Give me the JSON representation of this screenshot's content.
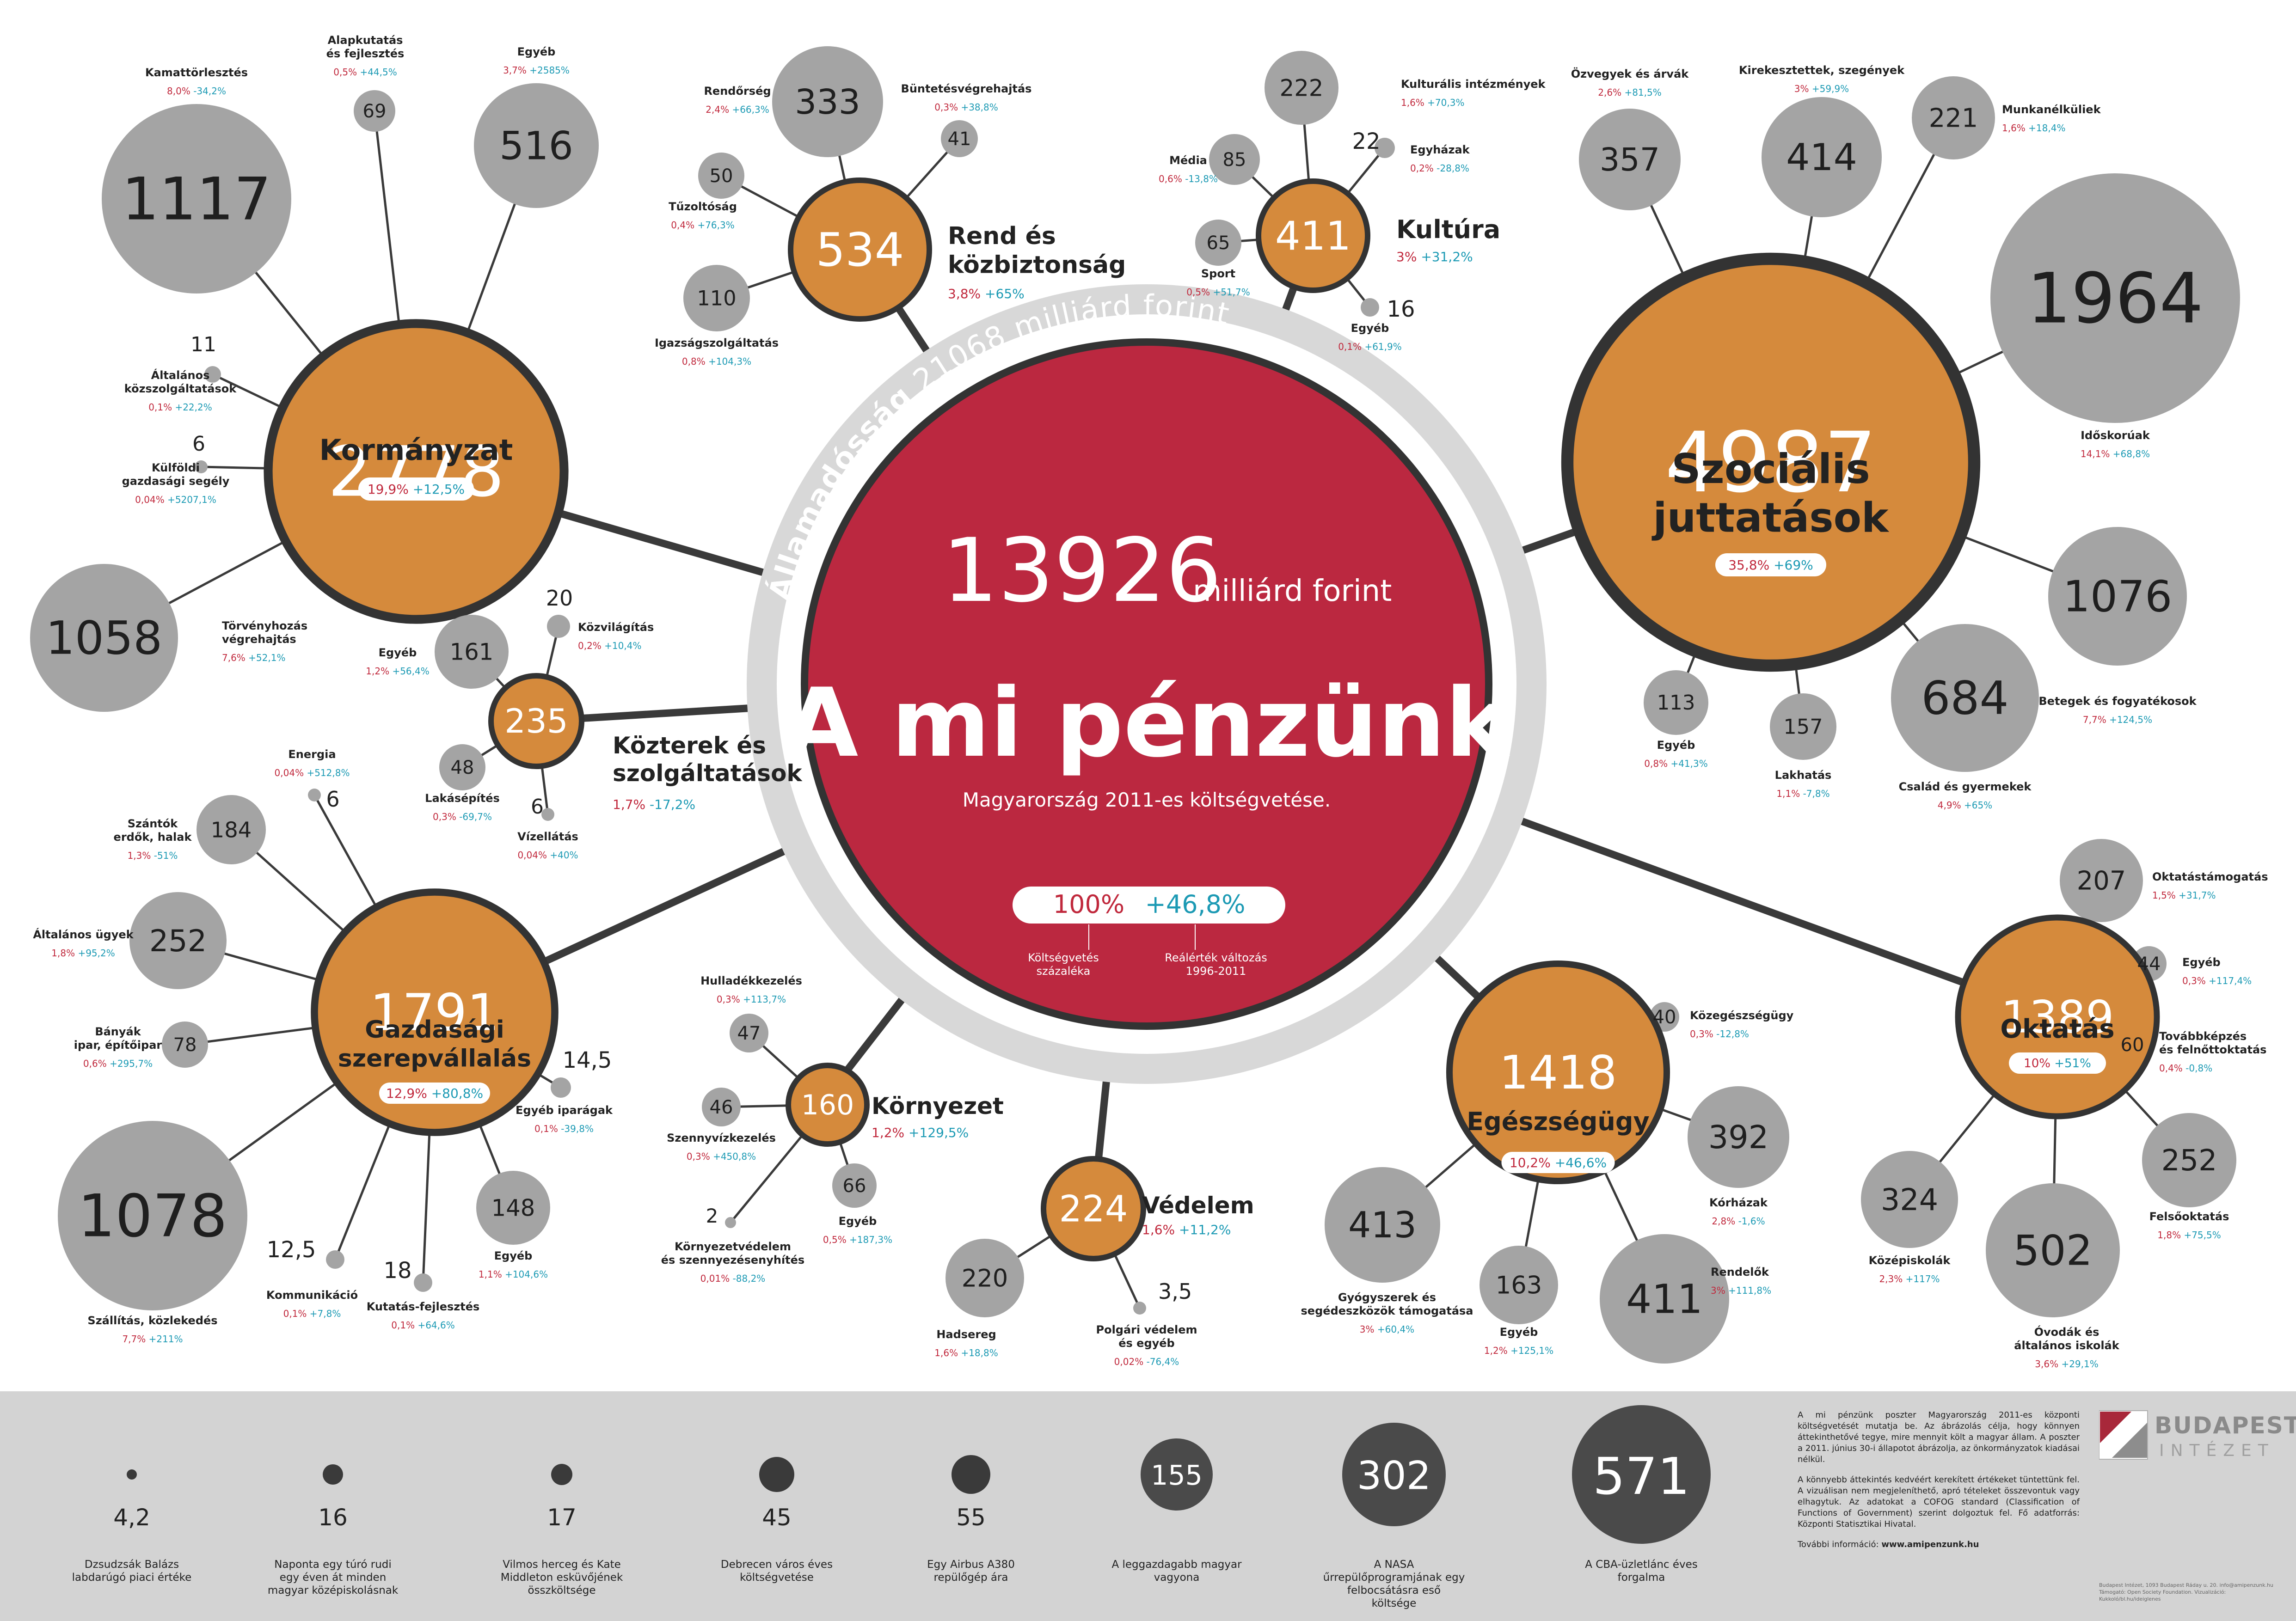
{
  "colors": {
    "orange": "#d58a3c",
    "grey": "#a4a4a4",
    "dark_grey": "#4a4a4a",
    "red": "#bb2840",
    "ring": "#d8d8d8",
    "text_red": "#c0283c",
    "text_blue": "#1c9ab4",
    "footer": "#d3d3d3"
  },
  "center": {
    "amount": "13926",
    "unit": "milliárd forint",
    "title": "A mi pénzünk",
    "subtitle": "Magyarország 2011-es költségvetése.",
    "pct": "100%",
    "change": "+46,8%",
    "pct_label": "Költségvetés százaléka",
    "change_label": "Reálérték változás 1996-2011"
  },
  "debt_ring": {
    "label": "Államadósság",
    "value": "21068 milliárd forint"
  },
  "categories": {
    "kormanyzat": {
      "value": "2778",
      "name": "Kormányzat",
      "pct": "19,9%",
      "chg": "+12,5%",
      "items": [
        {
          "value": "1117",
          "label": "Kamattörlesztés",
          "pct": "8,0%",
          "chg": "-34,2%"
        },
        {
          "value": "69",
          "label": "Alapkutatás és fejlesztés",
          "pct": "0,5%",
          "chg": "+44,5%"
        },
        {
          "value": "516",
          "label": "Egyéb",
          "pct": "3,7%",
          "chg": "+2585%"
        },
        {
          "value": "11",
          "label": "Általános közszolgáltatások",
          "pct": "0,1%",
          "chg": "+22,2%"
        },
        {
          "value": "6",
          "label": "Külföldi gazdasági segély",
          "pct": "0,04%",
          "chg": "+5207,1%"
        },
        {
          "value": "1058",
          "label": "Törvényhozás végrehajtás",
          "pct": "7,6%",
          "chg": "+52,1%"
        }
      ]
    },
    "rend": {
      "value": "534",
      "name": "Rend és közbiztonság",
      "pct": "3,8%",
      "chg": "+65%",
      "items": [
        {
          "value": "333",
          "label": "Rendőrség",
          "pct": "2,4%",
          "chg": "+66,3%"
        },
        {
          "value": "41",
          "label": "Büntetésvégrehajtás",
          "pct": "0,3%",
          "chg": "+38,8%"
        },
        {
          "value": "50",
          "label": "Tűzoltóság",
          "pct": "0,4%",
          "chg": "+76,3%"
        },
        {
          "value": "110",
          "label": "Igazságszolgáltatás",
          "pct": "0,8%",
          "chg": "+104,3%"
        }
      ]
    },
    "kultura": {
      "value": "411",
      "name": "Kultúra",
      "pct": "3%",
      "chg": "+31,2%",
      "items": [
        {
          "value": "222",
          "label": "Kulturális intézmények",
          "pct": "1,6%",
          "chg": "+70,3%"
        },
        {
          "value": "85",
          "label": "Média",
          "pct": "0,6%",
          "chg": "-13,8%"
        },
        {
          "value": "22",
          "label": "Egyházak",
          "pct": "0,2%",
          "chg": "-28,8%"
        },
        {
          "value": "65",
          "label": "Sport",
          "pct": "0,5%",
          "chg": "+51,7%"
        },
        {
          "value": "16",
          "label": "Egyéb",
          "pct": "0,1%",
          "chg": "+61,9%"
        }
      ]
    },
    "szocialis": {
      "value": "4987",
      "name": "Szociális juttatások",
      "pct": "35,8%",
      "chg": "+69%",
      "items": [
        {
          "value": "357",
          "label": "Özvegyek és árvák",
          "pct": "2,6%",
          "chg": "+81,5%"
        },
        {
          "value": "414",
          "label": "Kirekesztettek, szegények",
          "pct": "3%",
          "chg": "+59,9%"
        },
        {
          "value": "221",
          "label": "Munkanélküliek",
          "pct": "1,6%",
          "chg": "+18,4%"
        },
        {
          "value": "1964",
          "label": "Időskorúak",
          "pct": "14,1%",
          "chg": "+68,8%"
        },
        {
          "value": "1076",
          "label": "Betegek és fogyatékosok",
          "pct": "7,7%",
          "chg": "+124,5%"
        },
        {
          "value": "684",
          "label": "Család és gyermekek",
          "pct": "4,9%",
          "chg": "+65%"
        },
        {
          "value": "157",
          "label": "Lakhatás",
          "pct": "1,1%",
          "chg": "-7,8%"
        },
        {
          "value": "113",
          "label": "Egyéb",
          "pct": "0,8%",
          "chg": "+41,3%"
        }
      ]
    },
    "kozterek": {
      "value": "235",
      "name": "Közterek és szolgáltatások",
      "pct": "1,7%",
      "chg": "-17,2%",
      "items": [
        {
          "value": "161",
          "label": "Egyéb",
          "pct": "1,2%",
          "chg": "+56,4%"
        },
        {
          "value": "20",
          "label": "Közvilágítás",
          "pct": "0,2%",
          "chg": "+10,4%"
        },
        {
          "value": "48",
          "label": "Lakásépítés",
          "pct": "0,3%",
          "chg": "-69,7%"
        },
        {
          "value": "6",
          "label": "Vízellátás",
          "pct": "0,04%",
          "chg": "+40%"
        }
      ]
    },
    "gazdasagi": {
      "value": "1791",
      "name": "Gazdasági szerepvállalás",
      "pct": "12,9%",
      "chg": "+80,8%",
      "items": [
        {
          "value": "184",
          "label": "Szántók erdők, halak",
          "pct": "1,3%",
          "chg": "-51%"
        },
        {
          "value": "6",
          "label": "Energia",
          "pct": "0,04%",
          "chg": "+512,8%"
        },
        {
          "value": "252",
          "label": "Általános ügyek",
          "pct": "1,8%",
          "chg": "+95,2%"
        },
        {
          "value": "78",
          "label": "Bányák ipar, építőipar",
          "pct": "0,6%",
          "chg": "+295,7%"
        },
        {
          "value": "14,5",
          "label": "Egyéb iparágak",
          "pct": "0,1%",
          "chg": "-39,8%"
        },
        {
          "value": "148",
          "label": "Egyéb",
          "pct": "1,1%",
          "chg": "+104,6%"
        },
        {
          "value": "18",
          "label": "Kutatás-fejlesztés",
          "pct": "0,1%",
          "chg": "+64,6%"
        },
        {
          "value": "12,5",
          "label": "Kommunikáció",
          "pct": "0,1%",
          "chg": "+7,8%"
        },
        {
          "value": "1078",
          "label": "Szállítás, közlekedés",
          "pct": "7,7%",
          "chg": "+211%"
        }
      ]
    },
    "kornyezet": {
      "value": "160",
      "name": "Környezet",
      "pct": "1,2%",
      "chg": "+129,5%",
      "items": [
        {
          "value": "47",
          "label": "Hulladékkezelés",
          "pct": "0,3%",
          "chg": "+113,7%"
        },
        {
          "value": "46",
          "label": "Szennyvízkezelés",
          "pct": "0,3%",
          "chg": "+450,8%"
        },
        {
          "value": "66",
          "label": "Egyéb",
          "pct": "0,5%",
          "chg": "+187,3%"
        },
        {
          "value": "2",
          "label": "Környezetvédelem és szennyezésenyhítés",
          "pct": "0,01%",
          "chg": "-88,2%"
        }
      ]
    },
    "vedelem": {
      "value": "224",
      "name": "Védelem",
      "pct": "1,6%",
      "chg": "+11,2%",
      "items": [
        {
          "value": "220",
          "label": "Hadsereg",
          "pct": "1,6%",
          "chg": "+18,8%"
        },
        {
          "value": "3,5",
          "label": "Polgári védelem és egyéb",
          "pct": "0,02%",
          "chg": "-76,4%"
        }
      ]
    },
    "egeszseg": {
      "value": "1418",
      "name": "Egészségügy",
      "pct": "10,2%",
      "chg": "+46,6%",
      "items": [
        {
          "value": "40",
          "label": "Közegészségügy",
          "pct": "0,3%",
          "chg": "-12,8%"
        },
        {
          "value": "392",
          "label": "Kórházak",
          "pct": "2,8%",
          "chg": "-1,6%"
        },
        {
          "value": "413",
          "label": "Gyógyszerek és segédeszközök támogatása",
          "pct": "3%",
          "chg": "+60,4%"
        },
        {
          "value": "163",
          "label": "Egyéb",
          "pct": "1,2%",
          "chg": "+125,1%"
        },
        {
          "value": "411",
          "label": "Rendelők",
          "pct": "3%",
          "chg": "+111,8%"
        }
      ]
    },
    "oktatas": {
      "value": "1389",
      "name": "Oktatás",
      "pct": "10%",
      "chg": "+51%",
      "items": [
        {
          "value": "207",
          "label": "Oktatástámogatás",
          "pct": "1,5%",
          "chg": "+31,7%"
        },
        {
          "value": "44",
          "label": "Egyéb",
          "pct": "0,3%",
          "chg": "+117,4%"
        },
        {
          "value": "60",
          "label": "Továbbképzés és felnőttoktatás",
          "pct": "0,4%",
          "chg": "-0,8%"
        },
        {
          "value": "252",
          "label": "Felsőoktatás",
          "pct": "1,8%",
          "chg": "+75,5%"
        },
        {
          "value": "324",
          "label": "Középiskolák",
          "pct": "2,3%",
          "chg": "+117%"
        },
        {
          "value": "502",
          "label": "Óvodák és általános iskolák",
          "pct": "3,6%",
          "chg": "+29,1%"
        }
      ]
    }
  },
  "scale": [
    {
      "value": "4,2",
      "label": "Dzsudzsák Balázs labdarúgó piaci értéke"
    },
    {
      "value": "16",
      "label": "Naponta egy túró rudi egy éven át minden magyar középiskolásnak"
    },
    {
      "value": "17",
      "label": "Vilmos herceg és Kate Middleton esküvőjének összköltsége"
    },
    {
      "value": "45",
      "label": "Debrecen város éves költségvetése"
    },
    {
      "value": "55",
      "label": "Egy Airbus A380 repülőgép ára"
    },
    {
      "value": "155",
      "label": "A leggazdagabb magyar vagyona"
    },
    {
      "value": "302",
      "label": "A NASA űrrepülőprogramjának egy felbocsátásra eső költsége"
    },
    {
      "value": "571",
      "label": "A CBA-üzletlánc éves forgalma"
    }
  ],
  "about": {
    "p1": "A mi pénzünk poszter Magyarország 2011-es központi költségvetését mutatja be. Az ábrázolás célja, hogy könnyen áttekinthetővé tegye, mire mennyit költ a magyar állam. A poszter a 2011. június 30-i állapotot ábrázolja, az önkormányzatok kiadásai nélkül.",
    "p2": "A könnyebb áttekintés kedvéért kerekített értékeket tüntettünk fel. A vizuálisan nem megjeleníthető, apró tételeket összevontuk vagy elhagytuk. Az adatokat a COFOG standard (Classification of Functions of Government) szerint dolgoztuk fel. Fő adatforrás: Központi Statisztikai Hivatal.",
    "more_label": "További információ:",
    "more_url": "www.amipenzunk.hu"
  },
  "logo": {
    "name": "BUDAPEST",
    "sub": "INTÉZET",
    "credits": "Budapest Intézet, 1093 Budapest Ráday u. 20. info@amipenzunk.hu Támogató: Open Society Foundation. Vizualizáció: Kukkoló/bl.hu/ideiglenes"
  }
}
